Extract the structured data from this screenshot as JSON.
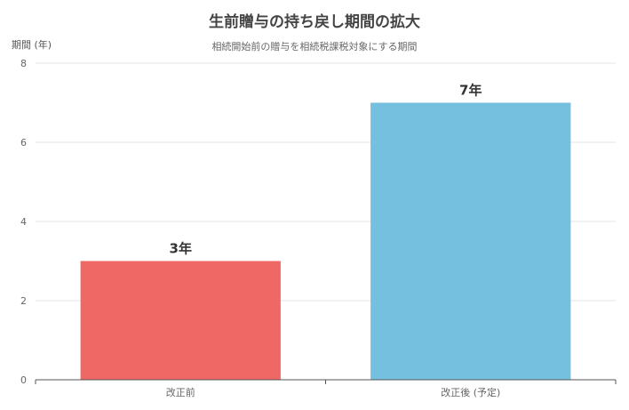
{
  "chart_data": {
    "type": "bar",
    "title": "生前贈与の持ち戻し期間の拡大",
    "subtitle": "相続開始前の贈与を相続税課税対象にする期間",
    "ylabel": "期間 (年)",
    "xlabel": "",
    "categories": [
      "改正前",
      "改正後 (予定)"
    ],
    "values": [
      3,
      7
    ],
    "data_labels": [
      "3年",
      "7年"
    ],
    "colors": [
      "#F06866",
      "#75BFDF"
    ],
    "ylim": [
      0,
      8
    ],
    "yticks": [
      0,
      2,
      4,
      6,
      8
    ],
    "grid": true,
    "legend": "none"
  }
}
